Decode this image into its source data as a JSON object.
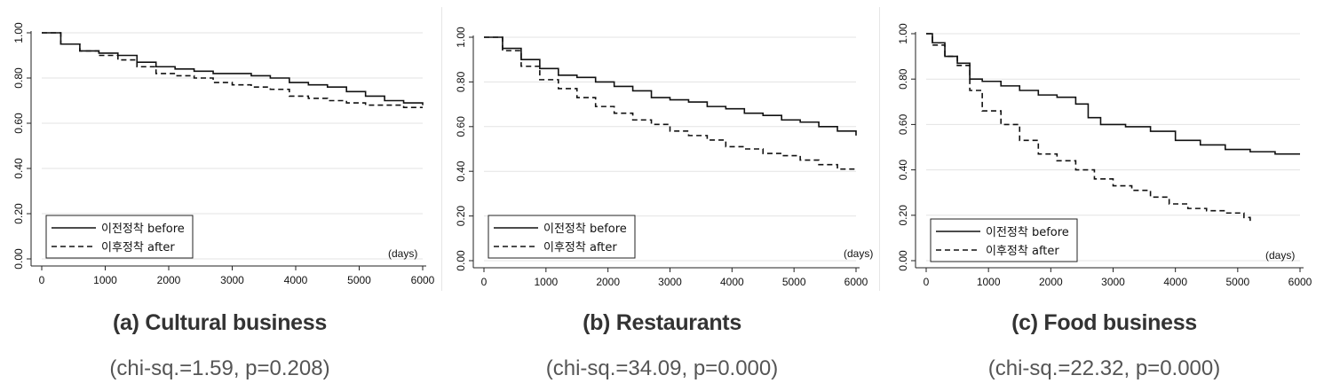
{
  "charts": [
    {
      "caption": "(a) Cultural business",
      "stat": "(chi-sq.=1.59,  p=0.208)",
      "chart_data": {
        "type": "line",
        "xlabel": "(days)",
        "xlim": [
          0,
          6000
        ],
        "ylim": [
          0,
          1
        ],
        "xticks": [
          "0",
          "1000",
          "2000",
          "3000",
          "4000",
          "5000",
          "6000"
        ],
        "yticks": [
          "0.00",
          "0.20",
          "0.40",
          "0.60",
          "0.80",
          "1.00"
        ],
        "grid": true,
        "legend_placement": "bottom-left",
        "series": [
          {
            "name": "이전정착 before",
            "style": "solid",
            "x": [
              0,
              300,
              600,
              900,
              1200,
              1500,
              1800,
              2100,
              2400,
              2700,
              3000,
              3300,
              3600,
              3900,
              4200,
              4500,
              4800,
              5100,
              5400,
              5700,
              6000
            ],
            "y": [
              1.0,
              0.95,
              0.92,
              0.91,
              0.9,
              0.87,
              0.85,
              0.84,
              0.83,
              0.82,
              0.82,
              0.81,
              0.8,
              0.78,
              0.77,
              0.76,
              0.74,
              0.72,
              0.7,
              0.69,
              0.68
            ]
          },
          {
            "name": "이후정착 after",
            "style": "dashed",
            "x": [
              0,
              300,
              600,
              900,
              1200,
              1500,
              1800,
              2100,
              2400,
              2700,
              3000,
              3300,
              3600,
              3900,
              4200,
              4500,
              4800,
              5100,
              5400,
              5700,
              6000
            ],
            "y": [
              1.0,
              0.95,
              0.92,
              0.9,
              0.88,
              0.85,
              0.82,
              0.81,
              0.8,
              0.78,
              0.77,
              0.76,
              0.75,
              0.72,
              0.71,
              0.7,
              0.69,
              0.68,
              0.68,
              0.67,
              0.67
            ]
          }
        ]
      }
    },
    {
      "caption": "(b) Restaurants",
      "stat": "(chi-sq.=34.09,  p=0.000)",
      "chart_data": {
        "type": "line",
        "xlabel": "(days)",
        "xlim": [
          0,
          6000
        ],
        "ylim": [
          0,
          1
        ],
        "xticks": [
          "0",
          "1000",
          "2000",
          "3000",
          "4000",
          "5000",
          "6000"
        ],
        "yticks": [
          "0.00",
          "0.20",
          "0.40",
          "0.60",
          "0.80",
          "1.00"
        ],
        "grid": true,
        "legend_placement": "bottom-left",
        "series": [
          {
            "name": "이전정착 before",
            "style": "solid",
            "x": [
              0,
              300,
              600,
              900,
              1200,
              1500,
              1800,
              2100,
              2400,
              2700,
              3000,
              3300,
              3600,
              3900,
              4200,
              4500,
              4800,
              5100,
              5400,
              5700,
              6000
            ],
            "y": [
              1.0,
              0.95,
              0.9,
              0.86,
              0.83,
              0.82,
              0.8,
              0.78,
              0.76,
              0.73,
              0.72,
              0.71,
              0.69,
              0.68,
              0.66,
              0.65,
              0.63,
              0.62,
              0.6,
              0.58,
              0.56
            ]
          },
          {
            "name": "이후정착 after",
            "style": "dashed",
            "x": [
              0,
              300,
              600,
              900,
              1200,
              1500,
              1800,
              2100,
              2400,
              2700,
              3000,
              3300,
              3600,
              3900,
              4200,
              4500,
              4800,
              5100,
              5400,
              5700,
              6000
            ],
            "y": [
              1.0,
              0.94,
              0.87,
              0.81,
              0.77,
              0.73,
              0.69,
              0.66,
              0.63,
              0.61,
              0.58,
              0.56,
              0.54,
              0.51,
              0.5,
              0.48,
              0.47,
              0.45,
              0.43,
              0.41,
              0.41
            ]
          }
        ]
      }
    },
    {
      "caption": "(c) Food business",
      "stat": "(chi-sq.=22.32,  p=0.000)",
      "chart_data": {
        "type": "line",
        "xlabel": "(days)",
        "xlim": [
          0,
          6000
        ],
        "ylim": [
          0,
          1
        ],
        "xticks": [
          "0",
          "1000",
          "2000",
          "3000",
          "4000",
          "5000",
          "6000"
        ],
        "yticks": [
          "0.00",
          "0.20",
          "0.40",
          "0.60",
          "0.80",
          "1.00"
        ],
        "grid": true,
        "legend_placement": "bottom-left",
        "series": [
          {
            "name": "이전정착 before",
            "style": "solid",
            "x": [
              0,
              100,
              300,
              500,
              700,
              900,
              1200,
              1500,
              1800,
              2100,
              2400,
              2600,
              2800,
              3200,
              3600,
              4000,
              4400,
              4800,
              5200,
              5600,
              6000
            ],
            "y": [
              1.0,
              0.96,
              0.9,
              0.87,
              0.8,
              0.79,
              0.77,
              0.75,
              0.73,
              0.72,
              0.69,
              0.63,
              0.6,
              0.59,
              0.57,
              0.53,
              0.51,
              0.49,
              0.48,
              0.47,
              0.47
            ]
          },
          {
            "name": "이후정착 after",
            "style": "dashed",
            "x": [
              0,
              100,
              300,
              500,
              700,
              900,
              1200,
              1500,
              1800,
              2100,
              2400,
              2700,
              3000,
              3300,
              3600,
              3900,
              4200,
              4500,
              4800,
              5100,
              5200
            ],
            "y": [
              1.0,
              0.95,
              0.9,
              0.86,
              0.75,
              0.66,
              0.6,
              0.53,
              0.47,
              0.44,
              0.4,
              0.36,
              0.33,
              0.31,
              0.28,
              0.25,
              0.23,
              0.22,
              0.21,
              0.19,
              0.17
            ]
          }
        ]
      }
    }
  ]
}
